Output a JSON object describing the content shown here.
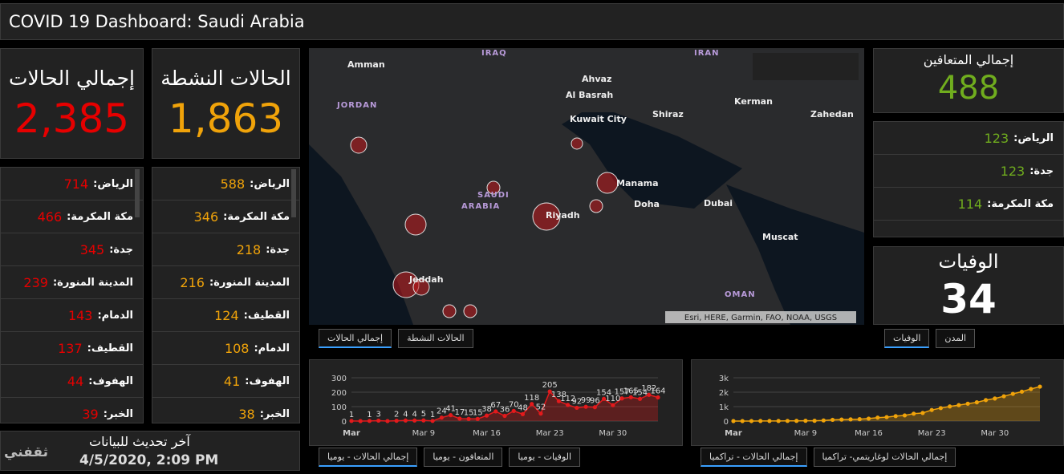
{
  "header": {
    "title": "COVID 19 Dashboard: Saudi Arabia"
  },
  "total_cases": {
    "label": "إجمالي الحالات",
    "value": "2,385"
  },
  "active_cases": {
    "label": "الحالات النشطة",
    "value": "1,863"
  },
  "recovered": {
    "label": "إجمالي المتعافين",
    "value": "488"
  },
  "deaths": {
    "label": "الوفيات",
    "value": "34"
  },
  "total_by_city": [
    {
      "city": "الرياض:",
      "count": 714
    },
    {
      "city": "مكة المكرمة:",
      "count": 466
    },
    {
      "city": "جدة:",
      "count": 345
    },
    {
      "city": "المدينة المنورة:",
      "count": 239
    },
    {
      "city": "الدمام:",
      "count": 143
    },
    {
      "city": "القطيف:",
      "count": 137
    },
    {
      "city": "الهفوف:",
      "count": 44
    },
    {
      "city": "الخبر:",
      "count": 39
    }
  ],
  "active_by_city": [
    {
      "city": "الرياض:",
      "count": 588
    },
    {
      "city": "مكة المكرمة:",
      "count": 346
    },
    {
      "city": "جدة:",
      "count": 218
    },
    {
      "city": "المدينة المنورة:",
      "count": 216
    },
    {
      "city": "القطيف:",
      "count": 124
    },
    {
      "city": "الدمام:",
      "count": 108
    },
    {
      "city": "الهفوف:",
      "count": 41
    },
    {
      "city": "الخبر:",
      "count": 38
    }
  ],
  "recovered_by_city": [
    {
      "city": "الرياض:",
      "count": 123
    },
    {
      "city": "جدة:",
      "count": 123
    },
    {
      "city": "مكة المكرمة:",
      "count": 114
    }
  ],
  "last_update": {
    "label": "آخر تحديث للبيانات",
    "value": "4/5/2020, 2:09 PM",
    "watermark": "ثقفني"
  },
  "map": {
    "labels": [
      "IRAQ",
      "IRAN",
      "Amman",
      "JORDAN",
      "Ahvaz",
      "Al Basrah",
      "Kuwait City",
      "Shiraz",
      "Kerman",
      "Zahedan",
      "SAUDI",
      "ARABIA",
      "Manama",
      "Doha",
      "Dubai",
      "Riyadh",
      "Muscat",
      "OMAN",
      "Jeddah"
    ],
    "attribution": "Esri, HERE, Garmin, FAO, NOAA, USGS"
  },
  "map_tabs": [
    "إجمالي الحالات",
    "الحالات النشطة"
  ],
  "right_tabs": [
    "الوفيات",
    "المدن"
  ],
  "chart1_tabs": [
    "إجمالي الحالات - يوميا",
    "المتعافون - يوميا",
    "الوفيات - يوميا"
  ],
  "chart2_tabs": [
    "إجمالي الحالات - تراكميا",
    "إجمالي الحالات لوغاريتمي- تراكميا"
  ],
  "chart_data": [
    {
      "type": "line",
      "color": "#e31a1c",
      "area": true,
      "data_labels": true,
      "categories": [
        "Mar",
        null,
        null,
        null,
        null,
        null,
        null,
        null,
        "Mar 9",
        null,
        null,
        null,
        null,
        null,
        null,
        "Mar 16",
        null,
        null,
        null,
        null,
        null,
        null,
        "Mar 23",
        null,
        null,
        null,
        null,
        null,
        null,
        "Mar 30",
        null,
        null,
        null,
        null,
        null
      ],
      "values": [
        1,
        0,
        1,
        3,
        0,
        2,
        4,
        4,
        5,
        1,
        24,
        41,
        17,
        15,
        15,
        38,
        67,
        36,
        70,
        48,
        118,
        52,
        205,
        138,
        112,
        92,
        99,
        96,
        154,
        110,
        157,
        165,
        154,
        182,
        164
      ],
      "ylim": [
        0,
        300
      ],
      "yticks": [
        0,
        100,
        200,
        300
      ],
      "grid": true
    },
    {
      "type": "line",
      "color": "#f0a30a",
      "area": true,
      "data_labels": false,
      "categories": [
        "Mar",
        null,
        null,
        null,
        null,
        null,
        null,
        null,
        "Mar 9",
        null,
        null,
        null,
        null,
        null,
        null,
        "Mar 16",
        null,
        null,
        null,
        null,
        null,
        null,
        "Mar 23",
        null,
        null,
        null,
        null,
        null,
        null,
        "Mar 30",
        null,
        null,
        null,
        null,
        null
      ],
      "values": [
        1,
        1,
        2,
        5,
        5,
        7,
        11,
        15,
        20,
        21,
        45,
        86,
        103,
        118,
        133,
        171,
        238,
        274,
        344,
        392,
        511,
        562,
        767,
        900,
        1012,
        1104,
        1203,
        1299,
        1453,
        1563,
        1720,
        1885,
        2039,
        2221,
        2385
      ],
      "ylim": [
        0,
        3000
      ],
      "yticks": [
        0,
        {
          "value": 1000,
          "label": "1k"
        },
        {
          "value": 2000,
          "label": "2k"
        },
        {
          "value": 3000,
          "label": "3k"
        }
      ],
      "grid": true
    }
  ]
}
